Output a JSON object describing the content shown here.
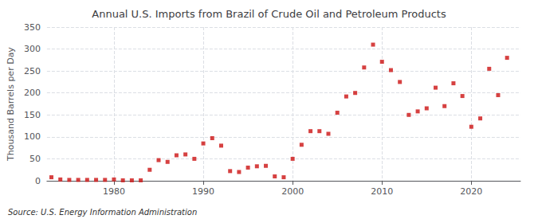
{
  "chart_data": {
    "type": "scatter",
    "title": "Annual U.S. Imports from Brazil of Crude Oil and Petroleum Products",
    "ylabel": "Thousand Barrels per Day",
    "annotations": [
      "Source: U.S. Energy Information Administration"
    ],
    "x": [
      1973,
      1974,
      1975,
      1976,
      1977,
      1978,
      1979,
      1980,
      1981,
      1982,
      1983,
      1984,
      1985,
      1986,
      1987,
      1988,
      1989,
      1990,
      1991,
      1992,
      1993,
      1994,
      1995,
      1996,
      1997,
      1998,
      1999,
      2000,
      2001,
      2002,
      2003,
      2004,
      2005,
      2006,
      2007,
      2008,
      2009,
      2010,
      2011,
      2012,
      2013,
      2014,
      2015,
      2016,
      2017,
      2018,
      2019,
      2020,
      2021,
      2022,
      2023,
      2024
    ],
    "values": [
      8,
      3,
      2,
      2,
      2,
      2,
      2,
      3,
      1,
      1,
      1,
      25,
      47,
      43,
      58,
      60,
      50,
      85,
      97,
      80,
      22,
      20,
      30,
      33,
      34,
      10,
      8,
      50,
      82,
      113,
      113,
      107,
      155,
      192,
      200,
      258,
      310,
      271,
      252,
      225,
      150,
      158,
      165,
      212,
      170,
      222,
      193,
      123,
      142,
      255,
      195,
      280
    ],
    "color": "#cc1111",
    "marker": "square",
    "xlim": [
      1972.5,
      2025.5
    ],
    "xticks": [
      1980,
      1990,
      2000,
      2010,
      2020
    ],
    "ylim": [
      0,
      350
    ],
    "yticks": [
      0,
      50,
      100,
      150,
      200,
      250,
      300,
      350
    ],
    "grid": true
  }
}
